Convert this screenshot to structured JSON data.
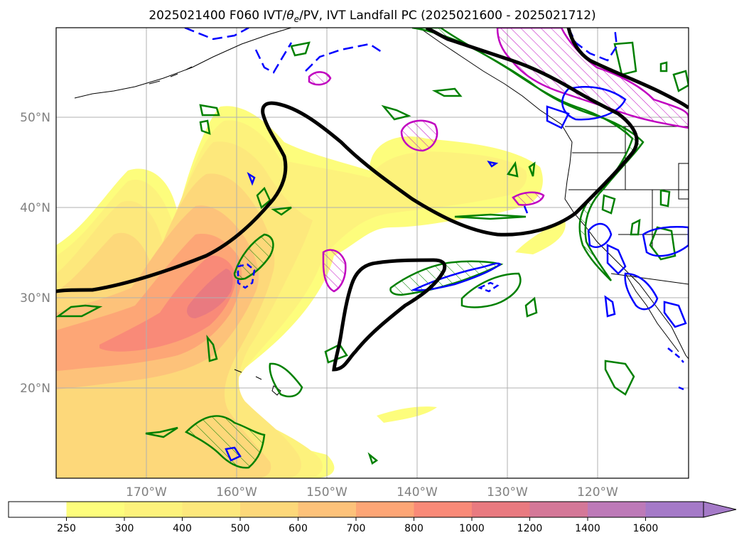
{
  "title": {
    "prefix": "2025021400 F060 IVT/",
    "theta": "θ",
    "theta_sub": "e",
    "suffix": "/PV, IVT Landfall PC (2025021600 - 2025021712)"
  },
  "map": {
    "projection": "lat-lon",
    "lon_range": [
      -180,
      -110
    ],
    "lat_range": [
      10,
      60
    ],
    "lat_ticks": [
      {
        "value": 20,
        "label": "20°N"
      },
      {
        "value": 30,
        "label": "30°N"
      },
      {
        "value": 40,
        "label": "40°N"
      },
      {
        "value": 50,
        "label": "50°N"
      }
    ],
    "lon_ticks": [
      {
        "value": -170,
        "label": "170°W"
      },
      {
        "value": -160,
        "label": "160°W"
      },
      {
        "value": -150,
        "label": "150°W"
      },
      {
        "value": -140,
        "label": "140°W"
      },
      {
        "value": -130,
        "label": "130°W"
      },
      {
        "value": -120,
        "label": "120°W"
      }
    ],
    "grid": true,
    "layers": {
      "ivt_fill": "IVT shading",
      "landfall_pc": "IVT landfall PC contour (black)",
      "theta_e": "green contours",
      "pv_pos": "magenta hatched contours",
      "pv_neg": "blue contours"
    },
    "colors": {
      "landfall_pc": "#000000",
      "green": "#008000",
      "magenta": "#c000c0",
      "blue": "#0000ff",
      "grid": "#b0b0b0"
    }
  },
  "colorbar": {
    "labels": [
      "250",
      "300",
      "400",
      "500",
      "600",
      "700",
      "800",
      "1000",
      "1200",
      "1400",
      "1600"
    ],
    "colors": [
      "#ffffff",
      "#fdfd7c",
      "#fdf27c",
      "#fde87c",
      "#fdd87a",
      "#fdc27a",
      "#fda676",
      "#f98a78",
      "#e97a80",
      "#d47898",
      "#bd7ab8",
      "#a57ac8"
    ],
    "extend": "max"
  }
}
